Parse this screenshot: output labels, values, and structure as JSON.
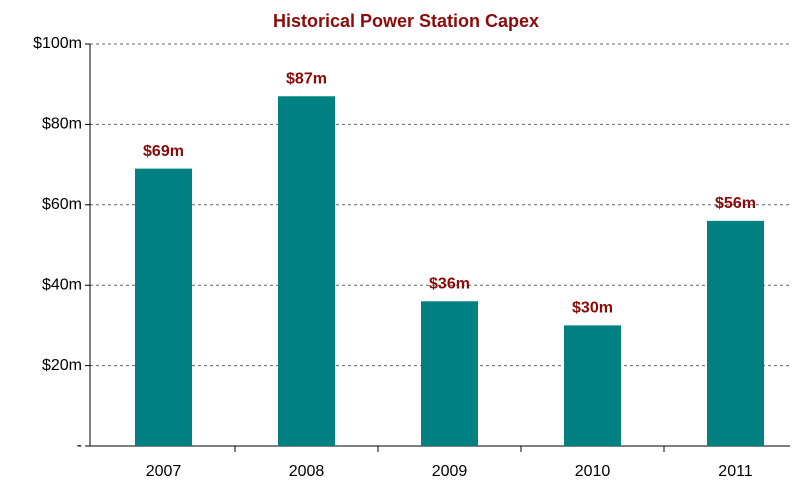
{
  "chart_data": {
    "type": "bar",
    "title": "Historical Power Station Capex",
    "categories": [
      "2007",
      "2008",
      "2009",
      "2010",
      "2011"
    ],
    "values": [
      69,
      87,
      36,
      30,
      56
    ],
    "value_labels": [
      "$69m",
      "$87m",
      "$36m",
      "$30m",
      "$56m"
    ],
    "color": "#008080",
    "ylim": [
      0,
      100
    ],
    "yticks": [
      {
        "value": 0,
        "label": "-"
      },
      {
        "value": 20,
        "label": "$20m"
      },
      {
        "value": 40,
        "label": "$40m"
      },
      {
        "value": 60,
        "label": "$60m"
      },
      {
        "value": 80,
        "label": "$80m"
      },
      {
        "value": 100,
        "label": "$100m"
      }
    ],
    "grid": true
  }
}
